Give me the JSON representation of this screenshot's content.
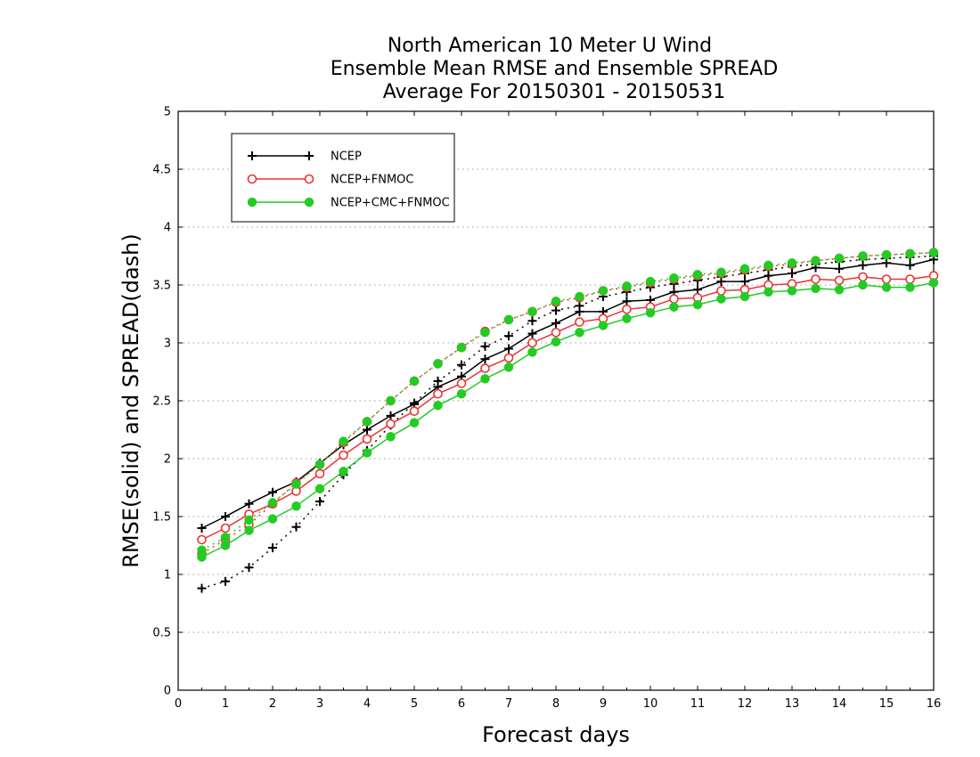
{
  "chart_data": {
    "type": "line",
    "title_lines": [
      "North American 10 Meter U Wind",
      "Ensemble Mean RMSE and Ensemble SPREAD",
      "Average For 20150301 - 20150531"
    ],
    "xlabel": "Forecast days",
    "ylabel": "RMSE(solid) and SPREAD(dash)",
    "xlim": [
      0,
      16
    ],
    "ylim": [
      0,
      5
    ],
    "xticks": [
      0,
      1,
      2,
      3,
      4,
      5,
      6,
      7,
      8,
      9,
      10,
      11,
      12,
      13,
      14,
      15,
      16
    ],
    "yticks": [
      0,
      0.5,
      1,
      1.5,
      2,
      2.5,
      3,
      3.5,
      4,
      4.5,
      5
    ],
    "ytick_labels": [
      "0",
      "0.5",
      "1",
      "1.5",
      "2",
      "2.5",
      "3",
      "3.5",
      "4",
      "4.5",
      "5"
    ],
    "grid": "horizontal dotted",
    "legend_position": "top-left",
    "x": [
      0.5,
      1,
      1.5,
      2,
      2.5,
      3,
      3.5,
      4,
      4.5,
      5,
      5.5,
      6,
      6.5,
      7,
      7.5,
      8,
      8.5,
      9,
      9.5,
      10,
      10.5,
      11,
      11.5,
      12,
      12.5,
      13,
      13.5,
      14,
      14.5,
      15,
      15.5,
      16
    ],
    "series": [
      {
        "name": "NCEP",
        "color": "#000000",
        "marker": "plus",
        "rmse": [
          1.4,
          1.5,
          1.61,
          1.71,
          1.8,
          1.96,
          2.12,
          2.25,
          2.37,
          2.47,
          2.62,
          2.71,
          2.86,
          2.95,
          3.08,
          3.17,
          3.27,
          3.27,
          3.36,
          3.37,
          3.44,
          3.46,
          3.53,
          3.53,
          3.58,
          3.6,
          3.65,
          3.64,
          3.67,
          3.69,
          3.67,
          3.72
        ],
        "spread": [
          0.88,
          0.94,
          1.06,
          1.23,
          1.41,
          1.63,
          1.86,
          2.07,
          2.29,
          2.48,
          2.67,
          2.81,
          2.97,
          3.06,
          3.19,
          3.28,
          3.32,
          3.4,
          3.44,
          3.48,
          3.51,
          3.54,
          3.57,
          3.6,
          3.63,
          3.66,
          3.68,
          3.7,
          3.72,
          3.73,
          3.74,
          3.75
        ]
      },
      {
        "name": "NCEP+FNMOC",
        "color": "#ee3333",
        "marker": "open-circle",
        "rmse": [
          1.3,
          1.4,
          1.52,
          1.61,
          1.72,
          1.87,
          2.03,
          2.17,
          2.3,
          2.41,
          2.56,
          2.65,
          2.78,
          2.87,
          3.0,
          3.09,
          3.18,
          3.21,
          3.29,
          3.31,
          3.38,
          3.39,
          3.45,
          3.46,
          3.5,
          3.51,
          3.55,
          3.54,
          3.57,
          3.55,
          3.55,
          3.58
        ],
        "spread": [
          1.18,
          1.3,
          1.43,
          1.61,
          1.79,
          1.95,
          2.14,
          2.32,
          2.5,
          2.67,
          2.82,
          2.96,
          3.1,
          3.2,
          3.27,
          3.35,
          3.39,
          3.45,
          3.48,
          3.52,
          3.55,
          3.58,
          3.6,
          3.63,
          3.66,
          3.68,
          3.71,
          3.73,
          3.75,
          3.76,
          3.77,
          3.78
        ]
      },
      {
        "name": "NCEP+CMC+FNMOC",
        "color": "#22cc22",
        "marker": "filled-circle",
        "rmse": [
          1.15,
          1.25,
          1.38,
          1.48,
          1.59,
          1.74,
          1.89,
          2.05,
          2.19,
          2.31,
          2.46,
          2.56,
          2.69,
          2.79,
          2.92,
          3.01,
          3.09,
          3.15,
          3.21,
          3.26,
          3.31,
          3.33,
          3.38,
          3.4,
          3.44,
          3.45,
          3.47,
          3.46,
          3.5,
          3.48,
          3.48,
          3.52
        ],
        "spread": [
          1.21,
          1.32,
          1.47,
          1.62,
          1.78,
          1.95,
          2.15,
          2.32,
          2.5,
          2.67,
          2.82,
          2.96,
          3.09,
          3.2,
          3.27,
          3.36,
          3.4,
          3.45,
          3.49,
          3.53,
          3.56,
          3.59,
          3.61,
          3.64,
          3.67,
          3.69,
          3.71,
          3.73,
          3.75,
          3.76,
          3.77,
          3.78
        ]
      }
    ]
  }
}
